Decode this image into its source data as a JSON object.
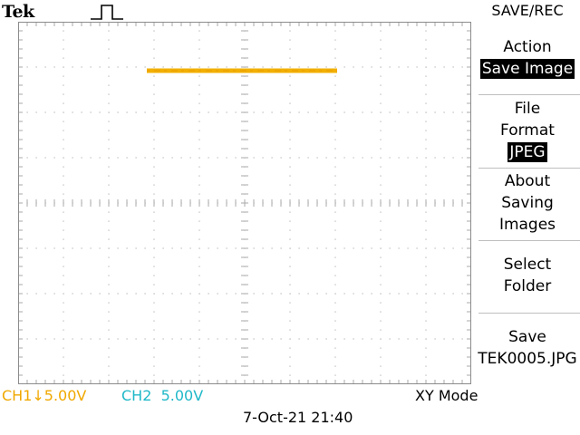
{
  "header": {
    "brand": "Tek"
  },
  "menu": {
    "title": "SAVE/REC",
    "action": {
      "label": "Action",
      "value": "Save Image"
    },
    "file_format": {
      "label_line1": "File",
      "label_line2": "Format",
      "value": "JPEG"
    },
    "about": {
      "line1": "About",
      "line2": "Saving",
      "line3": "Images"
    },
    "select_folder": {
      "line1": "Select",
      "line2": "Folder"
    },
    "save": {
      "line1": "Save",
      "line2": "TEK0005.JPG"
    }
  },
  "status": {
    "ch1": "CH1↓5.00V",
    "ch2_label": "CH2",
    "ch2_scale": "5.00V",
    "mode": "XY Mode",
    "datetime": "7-Oct-21 21:40"
  },
  "colors": {
    "ch1": "#f0a800",
    "ch2": "#1fb8c8",
    "trace": "#f2b000",
    "grid": "#a8a8a8"
  },
  "icons": {
    "trigger": "rising-pulse-icon"
  }
}
